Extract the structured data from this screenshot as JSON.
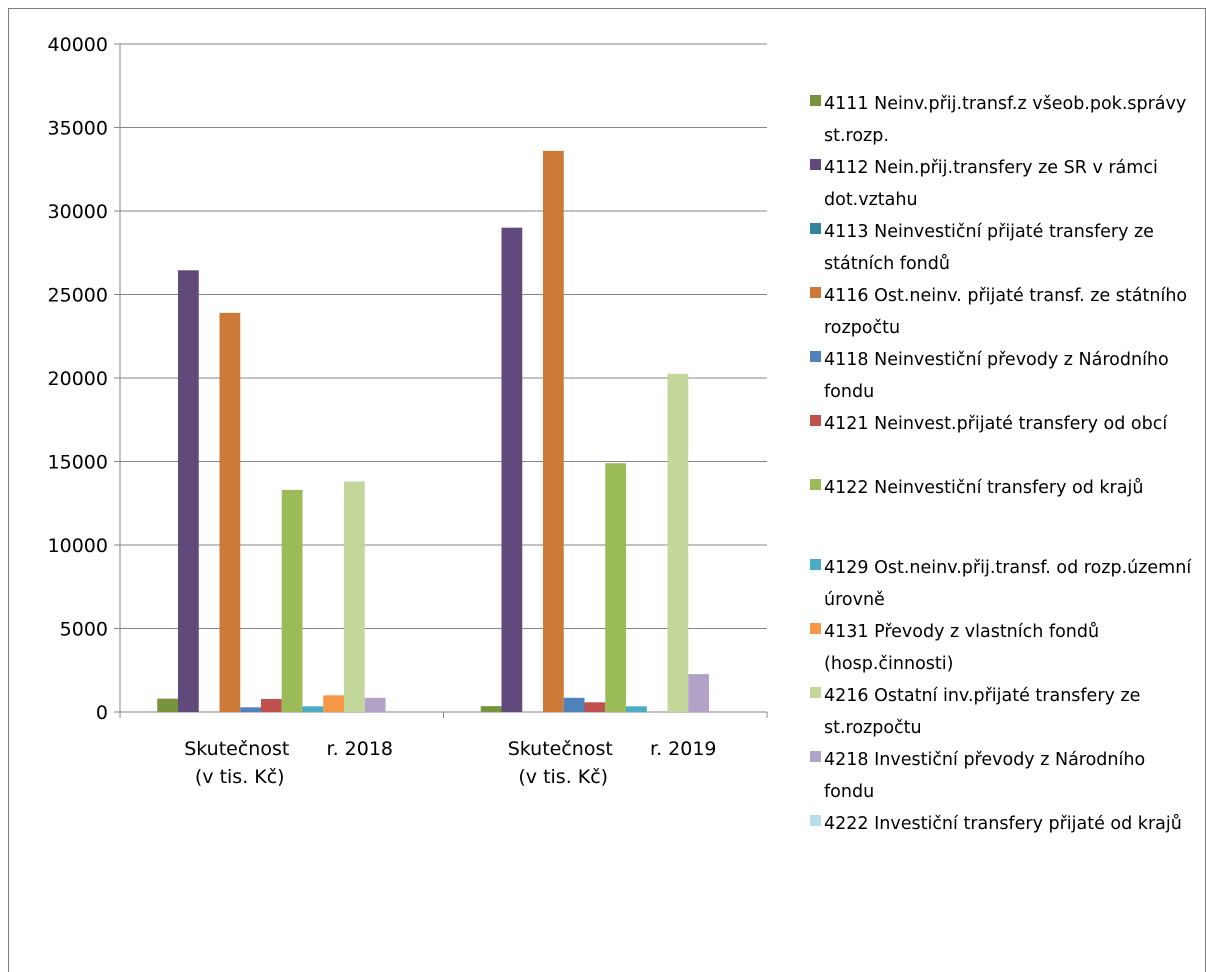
{
  "chart_data": {
    "type": "bar",
    "categories": [
      [
        "Skutečnost",
        "r. 2018",
        "(v tis. Kč)"
      ],
      [
        "Skutečnost",
        "r. 2019",
        "(v tis. Kč)"
      ]
    ],
    "ylim": [
      0,
      40000
    ],
    "yticks": [
      0,
      5000,
      10000,
      15000,
      20000,
      25000,
      30000,
      35000,
      40000
    ],
    "grid": true,
    "legend_position": "right",
    "series": [
      {
        "name": "4111 Neinv.přij.transf.z všeob.pok.správy st.rozp.",
        "color": "#77933c",
        "values": [
          800,
          350
        ]
      },
      {
        "name": "4112 Nein.přij.transfery ze SR v rámci dot.vztahu",
        "color": "#604a7b",
        "values": [
          26450,
          29000
        ]
      },
      {
        "name": "4113 Neinvestiční přijaté transfery ze státních fondů",
        "color": "#31859c",
        "values": [
          0,
          0
        ]
      },
      {
        "name": "4116 Ost.neinv. přijaté transf. ze státního rozpočtu",
        "color": "#cd7a39",
        "values": [
          23900,
          33600
        ]
      },
      {
        "name": "4118 Neinvestiční převody z Národního fondu",
        "color": "#4f81bd",
        "values": [
          280,
          850
        ]
      },
      {
        "name": "4121 Neinvest.přijaté transfery od obcí",
        "color": "#c0504d",
        "values": [
          780,
          580
        ]
      },
      {
        "name": "4122 Neinvestiční transfery od krajů",
        "color": "#9bbb59",
        "values": [
          13300,
          14900
        ]
      },
      {
        "name": "4129 Ost.neinv.přij.transf. od rozp.územní úrovně",
        "color": "#4bacc6",
        "values": [
          340,
          340
        ]
      },
      {
        "name": "4131 Převody z vlastních fondů (hosp.činnosti)",
        "color": "#f79646",
        "values": [
          1000,
          0
        ]
      },
      {
        "name": "4216 Ostatní inv.přijaté transfery ze st.rozpočtu",
        "color": "#c4d79b",
        "values": [
          13800,
          20250
        ]
      },
      {
        "name": "4218 Investiční převody z Národního fondu",
        "color": "#b3a2c7",
        "values": [
          850,
          2270
        ]
      },
      {
        "name": "4222 Investiční transfery přijaté od krajů",
        "color": "#b7dee8",
        "values": [
          0,
          0
        ]
      }
    ]
  }
}
